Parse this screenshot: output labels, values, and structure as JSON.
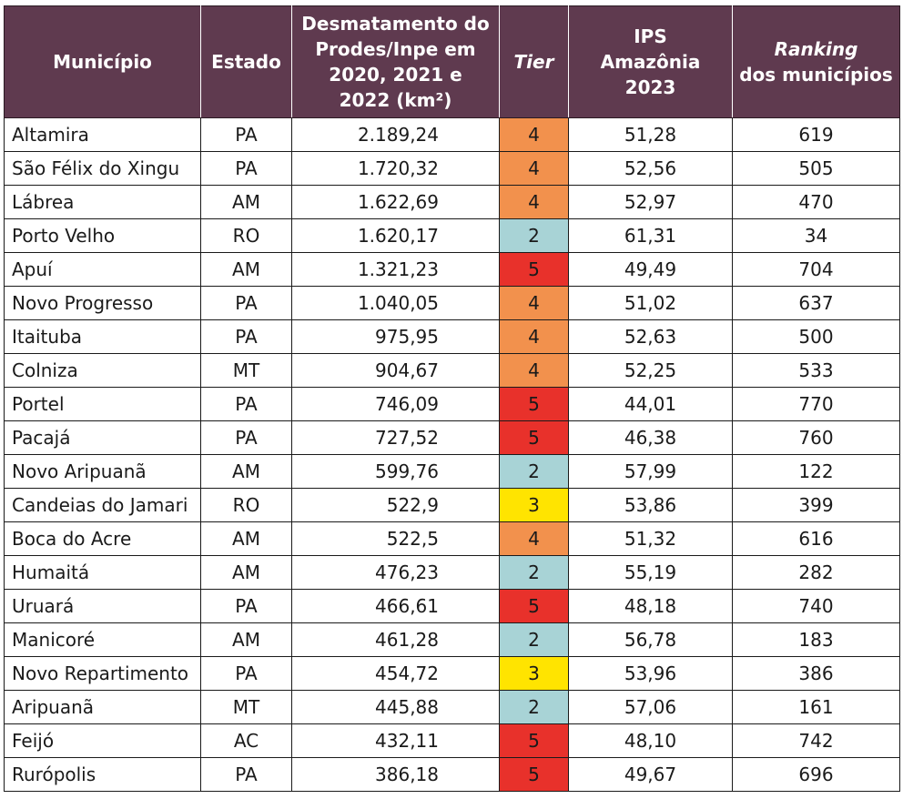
{
  "header": {
    "municipio": "Município",
    "estado": "Estado",
    "desmatamento": [
      "Desmatamento do",
      "Prodes/Inpe em",
      "2020, 2021 e",
      "2022 (km²)"
    ],
    "tier": "Tier",
    "ips": [
      "IPS",
      "Amazônia",
      "2023"
    ],
    "ranking_italic": "Ranking",
    "ranking_rest": "dos municípios"
  },
  "tier_colors": {
    "2": "#a8d3d6",
    "3": "#ffe400",
    "4": "#f2914d",
    "5": "#e8312b"
  },
  "rows": [
    {
      "municipio": "Altamira",
      "estado": "PA",
      "desmatamento": "2.189,24",
      "tier": "4",
      "ips": "51,28",
      "ranking": "619"
    },
    {
      "municipio": "São Félix do Xingu",
      "estado": "PA",
      "desmatamento": "1.720,32",
      "tier": "4",
      "ips": "52,56",
      "ranking": "505"
    },
    {
      "municipio": "Lábrea",
      "estado": "AM",
      "desmatamento": "1.622,69",
      "tier": "4",
      "ips": "52,97",
      "ranking": "470"
    },
    {
      "municipio": "Porto Velho",
      "estado": "RO",
      "desmatamento": "1.620,17",
      "tier": "2",
      "ips": "61,31",
      "ranking": "34"
    },
    {
      "municipio": "Apuí",
      "estado": "AM",
      "desmatamento": "1.321,23",
      "tier": "5",
      "ips": "49,49",
      "ranking": "704"
    },
    {
      "municipio": "Novo Progresso",
      "estado": "PA",
      "desmatamento": "1.040,05",
      "tier": "4",
      "ips": "51,02",
      "ranking": "637"
    },
    {
      "municipio": "Itaituba",
      "estado": "PA",
      "desmatamento": "975,95",
      "tier": "4",
      "ips": "52,63",
      "ranking": "500"
    },
    {
      "municipio": "Colniza",
      "estado": "MT",
      "desmatamento": "904,67",
      "tier": "4",
      "ips": "52,25",
      "ranking": "533"
    },
    {
      "municipio": "Portel",
      "estado": "PA",
      "desmatamento": "746,09",
      "tier": "5",
      "ips": "44,01",
      "ranking": "770"
    },
    {
      "municipio": "Pacajá",
      "estado": "PA",
      "desmatamento": "727,52",
      "tier": "5",
      "ips": "46,38",
      "ranking": "760"
    },
    {
      "municipio": "Novo Aripuanã",
      "estado": "AM",
      "desmatamento": "599,76",
      "tier": "2",
      "ips": "57,99",
      "ranking": "122"
    },
    {
      "municipio": "Candeias do Jamari",
      "estado": "RO",
      "desmatamento": "522,9",
      "tier": "3",
      "ips": "53,86",
      "ranking": "399"
    },
    {
      "municipio": "Boca do Acre",
      "estado": "AM",
      "desmatamento": "522,5",
      "tier": "4",
      "ips": "51,32",
      "ranking": "616"
    },
    {
      "municipio": "Humaitá",
      "estado": "AM",
      "desmatamento": "476,23",
      "tier": "2",
      "ips": "55,19",
      "ranking": "282"
    },
    {
      "municipio": "Uruará",
      "estado": "PA",
      "desmatamento": "466,61",
      "tier": "5",
      "ips": "48,18",
      "ranking": "740"
    },
    {
      "municipio": "Manicoré",
      "estado": "AM",
      "desmatamento": "461,28",
      "tier": "2",
      "ips": "56,78",
      "ranking": "183"
    },
    {
      "municipio": "Novo Repartimento",
      "estado": "PA",
      "desmatamento": "454,72",
      "tier": "3",
      "ips": "53,96",
      "ranking": "386"
    },
    {
      "municipio": "Aripuanã",
      "estado": "MT",
      "desmatamento": "445,88",
      "tier": "2",
      "ips": "57,06",
      "ranking": "161"
    },
    {
      "municipio": "Feijó",
      "estado": "AC",
      "desmatamento": "432,11",
      "tier": "5",
      "ips": "48,10",
      "ranking": "742"
    },
    {
      "municipio": "Rurópolis",
      "estado": "PA",
      "desmatamento": "386,18",
      "tier": "5",
      "ips": "49,67",
      "ranking": "696"
    }
  ]
}
